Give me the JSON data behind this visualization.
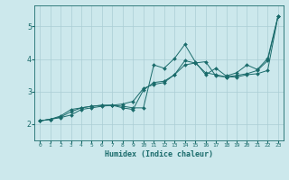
{
  "xlabel": "Humidex (Indice chaleur)",
  "bg_color": "#cce8ec",
  "line_color": "#1a6b6b",
  "grid_color": "#aacdd4",
  "xlim": [
    -0.5,
    23.5
  ],
  "ylim": [
    1.5,
    5.65
  ],
  "xticks": [
    0,
    1,
    2,
    3,
    4,
    5,
    6,
    7,
    8,
    9,
    10,
    11,
    12,
    13,
    14,
    15,
    16,
    17,
    18,
    19,
    20,
    21,
    22,
    23
  ],
  "yticks": [
    2,
    3,
    4,
    5
  ],
  "lines": [
    [
      0,
      2.1,
      1,
      2.15,
      2,
      2.2,
      3,
      2.28,
      4,
      2.45,
      5,
      2.5,
      6,
      2.55,
      7,
      2.58,
      8,
      2.62,
      9,
      2.7,
      10,
      3.1,
      11,
      3.22,
      12,
      3.28,
      13,
      3.52,
      14,
      3.95,
      15,
      3.88,
      16,
      3.58,
      17,
      3.52,
      18,
      3.45,
      19,
      3.5,
      20,
      3.55,
      21,
      3.65,
      22,
      3.95,
      23,
      5.32
    ],
    [
      0,
      2.1,
      1,
      2.15,
      2,
      2.22,
      3,
      2.38,
      4,
      2.5,
      5,
      2.55,
      6,
      2.58,
      7,
      2.58,
      8,
      2.55,
      9,
      2.5,
      10,
      2.5,
      11,
      3.82,
      12,
      3.72,
      13,
      4.02,
      14,
      4.45,
      15,
      3.92,
      16,
      3.52,
      17,
      3.72,
      18,
      3.48,
      19,
      3.58,
      20,
      3.82,
      21,
      3.68,
      22,
      4.02,
      23,
      5.32
    ],
    [
      0,
      2.1,
      1,
      2.15,
      2,
      2.25,
      3,
      2.45,
      4,
      2.5,
      5,
      2.55,
      6,
      2.58,
      7,
      2.58,
      8,
      2.5,
      9,
      2.45,
      10,
      3.05,
      11,
      3.28,
      12,
      3.32,
      13,
      3.52,
      14,
      3.82,
      15,
      3.88,
      16,
      3.92,
      17,
      3.48,
      18,
      3.45,
      19,
      3.45,
      20,
      3.52,
      21,
      3.55,
      22,
      3.65,
      23,
      5.32
    ]
  ]
}
